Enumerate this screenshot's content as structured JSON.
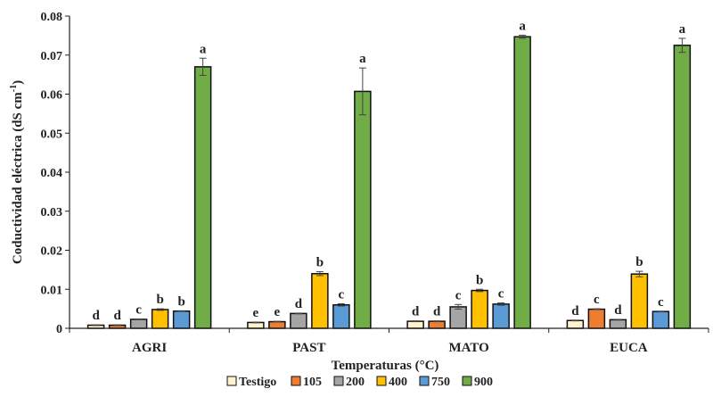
{
  "chart_data": {
    "type": "bar",
    "title": "",
    "xlabel": "Temperaturas (°C)",
    "ylabel": "Coductividad eléctrica  (dS cm",
    "ylabel_sup": "-1",
    "ylabel_close": ")",
    "ylim": [
      0,
      0.08
    ],
    "yticks": [
      "0",
      "0.01",
      "0.02",
      "0.03",
      "0.04",
      "0.05",
      "0.06",
      "0.07",
      "0.08"
    ],
    "ytick_values": [
      0,
      0.01,
      0.02,
      0.03,
      0.04,
      0.05,
      0.06,
      0.07,
      0.08
    ],
    "categories": [
      "AGRI",
      "PAST",
      "MATO",
      "EUCA"
    ],
    "legend_position": "bottom",
    "series": [
      {
        "name": "Testigo",
        "color": "#FFF2CC",
        "values": [
          0.0008,
          0.0015,
          0.0018,
          0.002
        ],
        "errors": [
          0.0001,
          0.0001,
          0.0001,
          0.0001
        ],
        "letters": [
          "d",
          "e",
          "d",
          "d"
        ]
      },
      {
        "name": "105",
        "color": "#ED7D31",
        "values": [
          0.0008,
          0.0017,
          0.0018,
          0.0049
        ],
        "errors": [
          0.0001,
          0.0001,
          0.0001,
          0.0001
        ],
        "letters": [
          "d",
          "e",
          "d",
          "c"
        ]
      },
      {
        "name": "200",
        "color": "#A5A5A5",
        "values": [
          0.0023,
          0.0038,
          0.0055,
          0.0022
        ],
        "errors": [
          0.0001,
          0.0001,
          0.0006,
          0.0001
        ],
        "letters": [
          "c",
          "d",
          "c",
          "d"
        ]
      },
      {
        "name": "400",
        "color": "#FFC000",
        "values": [
          0.0048,
          0.014,
          0.0097,
          0.0139
        ],
        "errors": [
          0.0002,
          0.0005,
          0.0003,
          0.0007
        ],
        "letters": [
          "b",
          "b",
          "b",
          "b"
        ]
      },
      {
        "name": "750",
        "color": "#5B9BD5",
        "values": [
          0.0044,
          0.006,
          0.0062,
          0.0043
        ],
        "errors": [
          0.0001,
          0.0003,
          0.0003,
          0.0001
        ],
        "letters": [
          "b",
          "c",
          "c",
          "c"
        ]
      },
      {
        "name": "900",
        "color": "#70AD47",
        "values": [
          0.067,
          0.0607,
          0.0747,
          0.0725
        ],
        "errors": [
          0.0022,
          0.006,
          0.0004,
          0.0018
        ],
        "letters": [
          "a",
          "a",
          "a",
          "a"
        ]
      }
    ]
  }
}
